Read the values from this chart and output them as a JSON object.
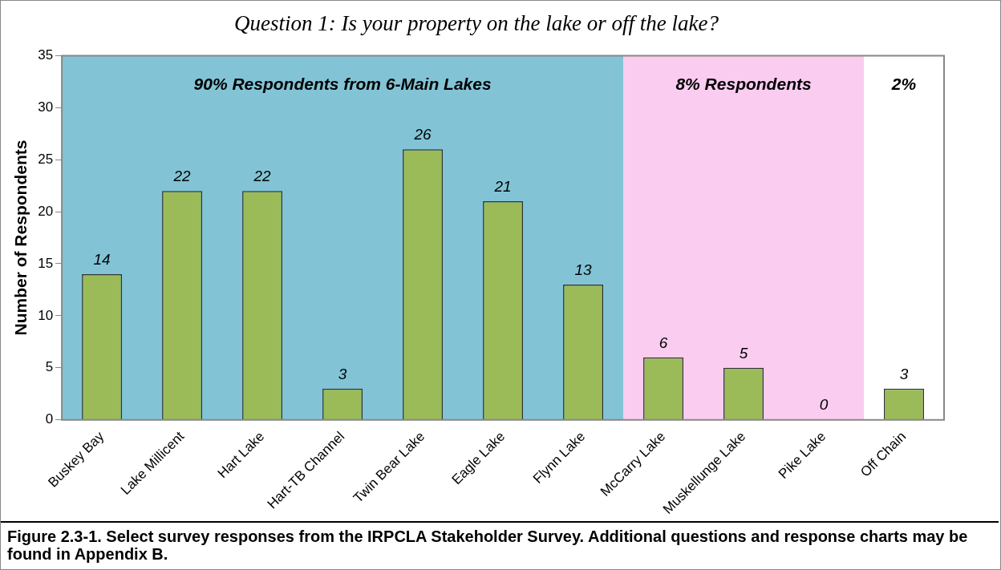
{
  "chart_data": {
    "type": "bar",
    "title": "Question 1: Is your property on the lake or off the lake?",
    "ylabel": "Number of Respondents",
    "categories": [
      "Buskey Bay",
      "Lake Millicent",
      "Hart Lake",
      "Hart-TB Channel",
      "Twin Bear Lake",
      "Eagle Lake",
      "Flynn Lake",
      "McCarry Lake",
      "Muskellunge Lake",
      "Pike Lake",
      "Off Chain"
    ],
    "values": [
      14,
      22,
      22,
      3,
      26,
      21,
      13,
      6,
      5,
      0,
      3
    ],
    "color": "#9bbb59",
    "ylim": [
      0,
      35
    ],
    "yticks": [
      0,
      5,
      10,
      15,
      20,
      25,
      30,
      35
    ],
    "grid": false,
    "legend": false,
    "data_labels": true,
    "bands": [
      {
        "axis": "x",
        "from": "Buskey Bay",
        "to": "Flynn Lake",
        "label": "90% Respondents from 6-Main Lakes",
        "color": "#82c4d6"
      },
      {
        "axis": "x",
        "from": "McCarry Lake",
        "to": "Pike Lake",
        "label": "8% Respondents",
        "color": "#f9ccf0"
      }
    ],
    "annotations": [
      "2%",
      "Figure 2.3-1.  Select survey responses from the IRPCLA Stakeholder Survey.  Additional questions and response charts may be found in Appendix B."
    ]
  }
}
